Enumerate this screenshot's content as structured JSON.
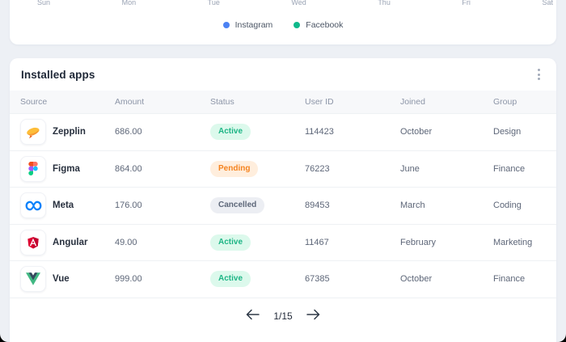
{
  "chart_card": {
    "axis_labels": [
      "Sun",
      "Mon",
      "Tue",
      "Wed",
      "Thu",
      "Fri",
      "Sat"
    ],
    "legend": [
      {
        "label": "Instagram",
        "color": "#4c82f3"
      },
      {
        "label": "Facebook",
        "color": "#10b98b"
      }
    ]
  },
  "apps_card": {
    "title": "Installed apps",
    "table": {
      "headers": [
        "Source",
        "Amount",
        "Status",
        "User ID",
        "Joined",
        "Group"
      ],
      "rows": [
        {
          "source": "Zepplin",
          "icon": "zepplin-icon",
          "amount": "686.00",
          "status": "Active",
          "status_type": "active",
          "user_id": "114423",
          "joined": "October",
          "group": "Design"
        },
        {
          "source": "Figma",
          "icon": "figma-icon",
          "amount": "864.00",
          "status": "Pending",
          "status_type": "pending",
          "user_id": "76223",
          "joined": "June",
          "group": "Finance"
        },
        {
          "source": "Meta",
          "icon": "meta-icon",
          "amount": "176.00",
          "status": "Cancelled",
          "status_type": "cancelled",
          "user_id": "89453",
          "joined": "March",
          "group": "Coding"
        },
        {
          "source": "Angular",
          "icon": "angular-icon",
          "amount": "49.00",
          "status": "Active",
          "status_type": "active",
          "user_id": "11467",
          "joined": "February",
          "group": "Marketing"
        },
        {
          "source": "Vue",
          "icon": "vue-icon",
          "amount": "999.00",
          "status": "Active",
          "status_type": "active",
          "user_id": "67385",
          "joined": "October",
          "group": "Finance"
        }
      ]
    },
    "status_styles": {
      "active": {
        "bg": "#dcf9ec",
        "text": "#1db585"
      },
      "pending": {
        "bg": "#ffeedd",
        "text": "#f5831f"
      },
      "cancelled": {
        "bg": "#eceef3",
        "text": "#5d6779"
      }
    },
    "pagination": {
      "label": "1/15"
    }
  }
}
